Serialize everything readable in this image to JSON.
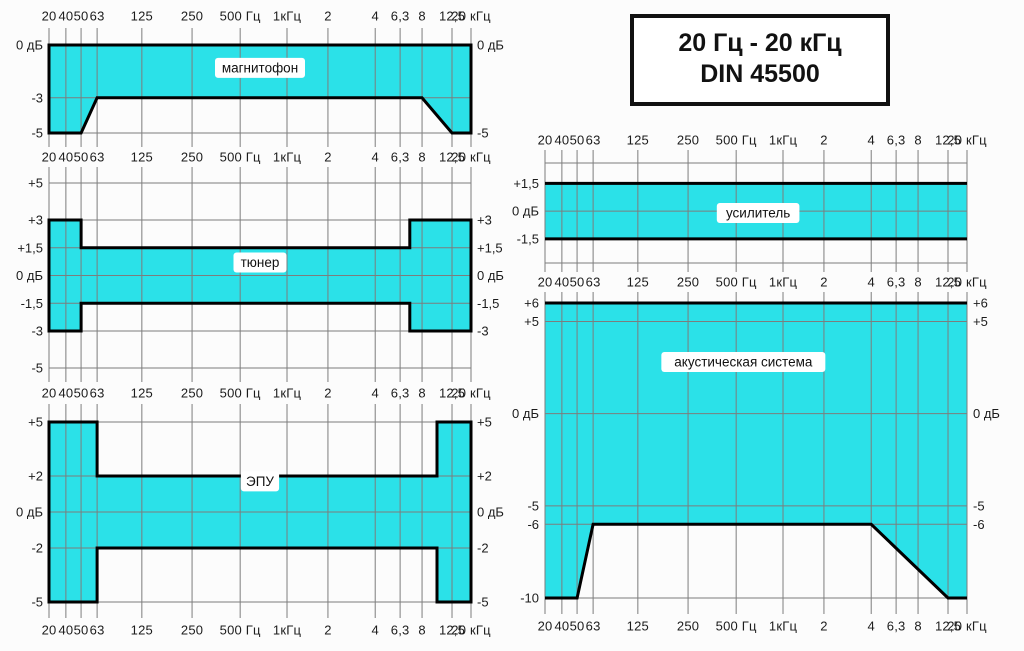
{
  "title_box": {
    "line1": "20 Гц - 20 кГц",
    "line2": "DIN 45500"
  },
  "colors": {
    "band_fill": "#2be1e8",
    "grid": "#7d7d7d",
    "band_outline": "#000000",
    "text": "#1c1c1c",
    "background": "#fcfcfc"
  },
  "axis": {
    "unit_x": "Гц",
    "unit_y": "дБ",
    "xlim": [
      20,
      20000
    ],
    "ticks": [
      {
        "f": 20,
        "label": "20",
        "pos": 0.0
      },
      {
        "f": 40,
        "label": "40",
        "pos": 0.04
      },
      {
        "f": 50,
        "label": "50",
        "pos": 0.076
      },
      {
        "f": 63,
        "label": "63",
        "pos": 0.114
      },
      {
        "f": 125,
        "label": "125",
        "pos": 0.22
      },
      {
        "f": 250,
        "label": "250",
        "pos": 0.339
      },
      {
        "f": 500,
        "label": "500 Гц",
        "pos": 0.453
      },
      {
        "f": 1000,
        "label": "1кГц",
        "pos": 0.564
      },
      {
        "f": 2000,
        "label": "2",
        "pos": 0.661
      },
      {
        "f": 4000,
        "label": "4",
        "pos": 0.773
      },
      {
        "f": 6300,
        "label": "6,3",
        "pos": 0.832
      },
      {
        "f": 8000,
        "label": "8",
        "pos": 0.884
      },
      {
        "f": 12500,
        "label": "12,5",
        "pos": 0.955
      },
      {
        "f": 20000,
        "label": "20 кГц",
        "pos": 1.0
      }
    ]
  },
  "chart_data": [
    {
      "type": "area",
      "caption": "магнитофон",
      "xlim": [
        20,
        20000
      ],
      "ylim": [
        0,
        -5
      ],
      "upper": [
        [
          20,
          0
        ],
        [
          20000,
          0
        ]
      ],
      "lower": [
        [
          20,
          -5
        ],
        [
          50,
          -5
        ],
        [
          63,
          -3
        ],
        [
          8000,
          -3
        ],
        [
          12500,
          -5
        ],
        [
          20000,
          -5
        ]
      ],
      "hgrids": [
        0,
        -3,
        -5
      ],
      "yticks_left": [
        {
          "v": 0,
          "t": "0 дБ"
        },
        {
          "v": -3,
          "t": "-3"
        },
        {
          "v": -5,
          "t": "-5"
        }
      ],
      "yticks_right": [
        {
          "v": 0,
          "t": "0 дБ"
        },
        {
          "v": -5,
          "t": "-5"
        }
      ],
      "closed": true,
      "cap": {
        "x": 0.5,
        "y": 0.26
      }
    },
    {
      "type": "area",
      "caption": "тюнер",
      "xlim": [
        20,
        20000
      ],
      "ylim": [
        5,
        -5
      ],
      "upper": [
        [
          20,
          3
        ],
        [
          50,
          3
        ],
        [
          50,
          1.5
        ],
        [
          7000,
          1.5
        ],
        [
          7000,
          3
        ],
        [
          20000,
          3
        ]
      ],
      "lower": [
        [
          20,
          -3
        ],
        [
          50,
          -3
        ],
        [
          50,
          -1.5
        ],
        [
          7000,
          -1.5
        ],
        [
          7000,
          -3
        ],
        [
          20000,
          -3
        ]
      ],
      "hgrids": [
        5,
        3,
        1.5,
        0,
        -1.5,
        -3,
        -5
      ],
      "yticks_left": [
        {
          "v": 5,
          "t": "+5"
        },
        {
          "v": 3,
          "t": "+3"
        },
        {
          "v": 1.5,
          "t": "+1,5"
        },
        {
          "v": 0,
          "t": "0 дБ"
        },
        {
          "v": -1.5,
          "t": "-1,5"
        },
        {
          "v": -3,
          "t": "-3"
        },
        {
          "v": -5,
          "t": "-5"
        }
      ],
      "yticks_right": [
        {
          "v": 3,
          "t": "+3"
        },
        {
          "v": 1.5,
          "t": "+1,5"
        },
        {
          "v": 0,
          "t": "0 дБ"
        },
        {
          "v": -1.5,
          "t": "-1,5"
        },
        {
          "v": -3,
          "t": "-3"
        }
      ],
      "closed": true,
      "cap": {
        "x": 0.5,
        "y": 0.43
      }
    },
    {
      "type": "area",
      "caption": "ЭПУ",
      "xlim": [
        20,
        20000
      ],
      "ylim": [
        5,
        -5
      ],
      "upper": [
        [
          20,
          5
        ],
        [
          63,
          5
        ],
        [
          63,
          2
        ],
        [
          10000,
          2
        ],
        [
          10000,
          5
        ],
        [
          20000,
          5
        ]
      ],
      "lower": [
        [
          20,
          -5
        ],
        [
          63,
          -5
        ],
        [
          63,
          -2
        ],
        [
          10000,
          -2
        ],
        [
          10000,
          -5
        ],
        [
          20000,
          -5
        ]
      ],
      "hgrids": [
        5,
        2,
        0,
        -2,
        -5
      ],
      "yticks_left": [
        {
          "v": 5,
          "t": "+5"
        },
        {
          "v": 2,
          "t": "+2"
        },
        {
          "v": 0,
          "t": "0 дБ"
        },
        {
          "v": -2,
          "t": "-2"
        },
        {
          "v": -5,
          "t": "-5"
        }
      ],
      "yticks_right": [
        {
          "v": 5,
          "t": "+5"
        },
        {
          "v": 2,
          "t": "+2"
        },
        {
          "v": 0,
          "t": "0 дБ"
        },
        {
          "v": -2,
          "t": "-2"
        },
        {
          "v": -5,
          "t": "-5"
        }
      ],
      "closed": true,
      "cap": {
        "x": 0.5,
        "y": 0.33
      }
    },
    {
      "type": "area",
      "caption": "усилитель",
      "xlim": [
        20,
        20000
      ],
      "ylim": [
        2.6,
        -2.8
      ],
      "upper": [
        [
          20,
          1.5
        ],
        [
          20000,
          1.5
        ]
      ],
      "lower": [
        [
          20,
          -1.5
        ],
        [
          20000,
          -1.5
        ]
      ],
      "hgrids": [
        2.6,
        0,
        -2.8
      ],
      "yticks_left": [
        {
          "v": 1.5,
          "t": "+1,5"
        },
        {
          "v": 0,
          "t": "0 дБ"
        },
        {
          "v": -1.5,
          "t": "-1,5"
        }
      ],
      "yticks_right": [],
      "closed": false,
      "cap": {
        "x": 0.505,
        "y": 0.5
      }
    },
    {
      "type": "area",
      "caption": "акустическая система",
      "xlim": [
        20,
        20000
      ],
      "ylim": [
        6,
        -10
      ],
      "upper": [
        [
          20,
          6
        ],
        [
          20000,
          6
        ]
      ],
      "lower": [
        [
          20,
          -10
        ],
        [
          50,
          -10
        ],
        [
          63,
          -6
        ],
        [
          4000,
          -6
        ],
        [
          12500,
          -10
        ],
        [
          20000,
          -10
        ]
      ],
      "hgrids": [
        6,
        5,
        0,
        -5,
        -6,
        -10
      ],
      "yticks_left": [
        {
          "v": 6,
          "t": "+6"
        },
        {
          "v": 5,
          "t": "+5"
        },
        {
          "v": 0,
          "t": "0 дБ"
        },
        {
          "v": -5,
          "t": "-5"
        },
        {
          "v": -6,
          "t": "-6"
        },
        {
          "v": -10,
          "t": "-10"
        }
      ],
      "yticks_right": [
        {
          "v": 6,
          "t": "+6"
        },
        {
          "v": 5,
          "t": "+5"
        },
        {
          "v": 0,
          "t": "0 дБ"
        },
        {
          "v": -5,
          "t": "-5"
        },
        {
          "v": -6,
          "t": "-6"
        }
      ],
      "closed": false,
      "cap": {
        "x": 0.47,
        "y": 0.2
      }
    }
  ]
}
